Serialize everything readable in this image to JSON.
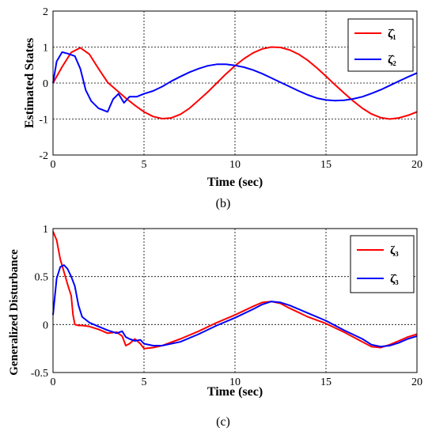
{
  "chart_data": [
    {
      "type": "line",
      "panel": "(b)",
      "ylabel": "Estimated States",
      "xlabel": "Time (sec)",
      "xlim": [
        0,
        20
      ],
      "ylim": [
        -2,
        2
      ],
      "xticks": [
        0,
        5,
        10,
        15,
        20
      ],
      "yticks": [
        -2,
        -1,
        0,
        1,
        2
      ],
      "grid": true,
      "legend_position": "top-right",
      "series": [
        {
          "name": "ζ̂₁",
          "color": "#ff0000",
          "x": [
            0,
            0.5,
            1.0,
            1.5,
            2.0,
            2.5,
            3.0,
            3.5,
            4.0,
            4.5,
            5.0,
            5.5,
            6.0,
            6.5,
            7.0,
            7.5,
            8.0,
            8.5,
            9.0,
            9.5,
            10.0,
            10.5,
            11.0,
            11.5,
            12.0,
            12.5,
            13.0,
            13.5,
            14.0,
            14.5,
            15.0,
            15.5,
            16.0,
            16.5,
            17.0,
            17.5,
            18.0,
            18.5,
            19.0,
            19.5,
            20.0
          ],
          "values": [
            0,
            0.45,
            0.85,
            0.98,
            0.8,
            0.4,
            0.02,
            -0.2,
            -0.42,
            -0.62,
            -0.8,
            -0.93,
            -0.99,
            -0.97,
            -0.87,
            -0.7,
            -0.48,
            -0.25,
            0.0,
            0.25,
            0.48,
            0.68,
            0.84,
            0.95,
            1.0,
            0.99,
            0.92,
            0.8,
            0.63,
            0.42,
            0.19,
            -0.05,
            -0.28,
            -0.5,
            -0.7,
            -0.86,
            -0.96,
            -1.0,
            -0.97,
            -0.9,
            -0.8
          ]
        },
        {
          "name": "ζ̂₂",
          "color": "#0000ff",
          "x": [
            0,
            0.2,
            0.5,
            0.8,
            1.2,
            1.5,
            1.8,
            2.1,
            2.5,
            3.0,
            3.3,
            3.6,
            3.9,
            4.2,
            4.6,
            5.0,
            5.5,
            6.0,
            6.5,
            7.0,
            7.5,
            8.0,
            8.5,
            9.0,
            9.5,
            10.0,
            10.5,
            11.0,
            11.5,
            12.0,
            12.5,
            13.0,
            13.5,
            14.0,
            14.5,
            15.0,
            15.5,
            16.0,
            16.5,
            17.0,
            17.5,
            18.0,
            18.5,
            19.0,
            19.5,
            20.0
          ],
          "values": [
            0,
            0.6,
            0.86,
            0.82,
            0.75,
            0.4,
            -0.2,
            -0.5,
            -0.7,
            -0.8,
            -0.45,
            -0.3,
            -0.55,
            -0.38,
            -0.38,
            -0.3,
            -0.22,
            -0.1,
            0.05,
            0.18,
            0.3,
            0.4,
            0.48,
            0.52,
            0.52,
            0.49,
            0.44,
            0.36,
            0.26,
            0.14,
            0.02,
            -0.1,
            -0.22,
            -0.33,
            -0.42,
            -0.47,
            -0.49,
            -0.48,
            -0.44,
            -0.38,
            -0.29,
            -0.19,
            -0.07,
            0.05,
            0.17,
            0.28
          ]
        }
      ]
    },
    {
      "type": "line",
      "panel": "(c)",
      "ylabel": "Generalized Disturbance",
      "xlabel": "Time (sec)",
      "xlim": [
        0,
        20
      ],
      "ylim": [
        -0.5,
        1
      ],
      "xticks": [
        0,
        5,
        10,
        15,
        20
      ],
      "yticks": [
        -0.5,
        0,
        0.5,
        1
      ],
      "grid": true,
      "legend_position": "top-right",
      "series": [
        {
          "name": "ζ₃",
          "color": "#ff0000",
          "x": [
            0,
            0.2,
            0.4,
            0.6,
            0.8,
            1.0,
            1.1,
            1.2,
            1.4,
            1.6,
            2.0,
            2.5,
            3.0,
            3.5,
            3.8,
            4.0,
            4.2,
            4.5,
            4.8,
            5.0,
            5.5,
            6.0,
            7.0,
            8.0,
            9.0,
            10.0,
            11.0,
            11.5,
            12.0,
            12.5,
            13.0,
            14.0,
            15.0,
            16.0,
            17.0,
            17.5,
            18.0,
            18.5,
            19.0,
            19.5,
            20.0
          ],
          "values": [
            0.97,
            0.88,
            0.68,
            0.55,
            0.42,
            0.3,
            0.1,
            0.0,
            -0.01,
            -0.01,
            -0.02,
            -0.05,
            -0.09,
            -0.08,
            -0.12,
            -0.22,
            -0.2,
            -0.15,
            -0.2,
            -0.25,
            -0.24,
            -0.22,
            -0.15,
            -0.07,
            0.02,
            0.1,
            0.19,
            0.23,
            0.24,
            0.22,
            0.17,
            0.08,
            0.01,
            -0.08,
            -0.18,
            -0.23,
            -0.24,
            -0.21,
            -0.17,
            -0.13,
            -0.1
          ]
        },
        {
          "name": "ζ̂₃",
          "color": "#0000ff",
          "x": [
            0,
            0.2,
            0.4,
            0.6,
            0.8,
            1.0,
            1.2,
            1.4,
            1.6,
            2.0,
            2.5,
            3.0,
            3.5,
            3.8,
            4.0,
            4.2,
            4.5,
            4.8,
            5.0,
            5.5,
            6.0,
            7.0,
            8.0,
            9.0,
            10.0,
            11.0,
            11.5,
            12.0,
            12.5,
            13.0,
            14.0,
            15.0,
            16.0,
            17.0,
            17.5,
            18.0,
            18.5,
            19.0,
            19.5,
            20.0
          ],
          "values": [
            0.1,
            0.48,
            0.6,
            0.62,
            0.58,
            0.5,
            0.4,
            0.2,
            0.08,
            0.02,
            -0.02,
            -0.06,
            -0.09,
            -0.07,
            -0.13,
            -0.15,
            -0.17,
            -0.16,
            -0.2,
            -0.22,
            -0.22,
            -0.18,
            -0.1,
            -0.01,
            0.07,
            0.16,
            0.21,
            0.24,
            0.23,
            0.2,
            0.12,
            0.04,
            -0.06,
            -0.15,
            -0.21,
            -0.23,
            -0.22,
            -0.19,
            -0.15,
            -0.12
          ]
        }
      ]
    }
  ]
}
